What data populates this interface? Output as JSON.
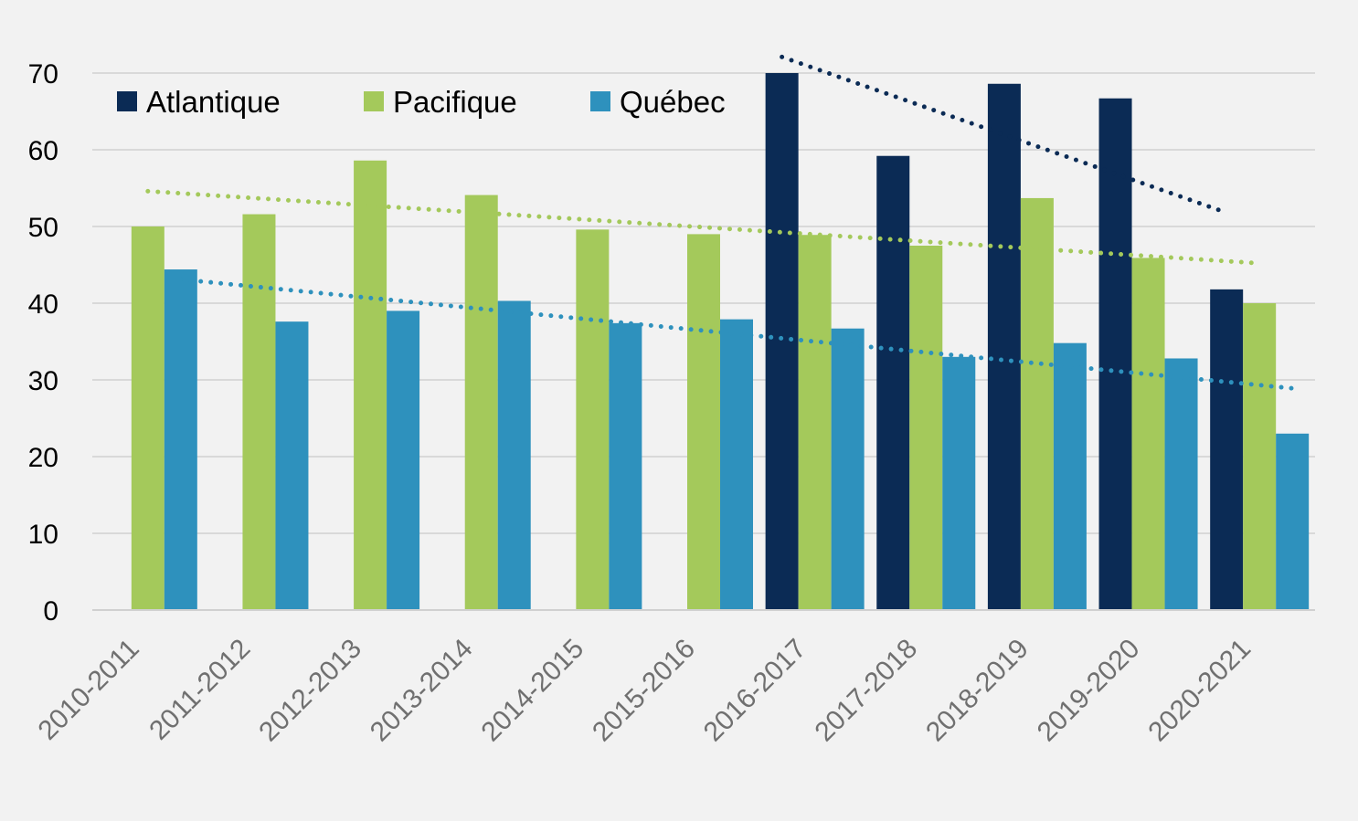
{
  "chart_data": {
    "type": "bar",
    "categories": [
      "2010-2011",
      "2011-2012",
      "2012-2013",
      "2013-2014",
      "2014-2015",
      "2015-2016",
      "2016-2017",
      "2017-2018",
      "2018-2019",
      "2019-2020",
      "2020-2021"
    ],
    "series": [
      {
        "name": "Atlantique",
        "color": "#0b2b55",
        "values": [
          null,
          null,
          null,
          null,
          null,
          null,
          70,
          59.2,
          68.6,
          66.7,
          41.8
        ]
      },
      {
        "name": "Pacifique",
        "color": "#a4c95b",
        "values": [
          50,
          51.6,
          58.6,
          54.1,
          49.6,
          49,
          48.9,
          47.5,
          53.7,
          45.9,
          40
        ]
      },
      {
        "name": "Québec",
        "color": "#2e91bd",
        "values": [
          44.4,
          37.6,
          39,
          40.3,
          37.4,
          37.9,
          36.7,
          33,
          34.8,
          32.8,
          23
        ]
      }
    ],
    "trendlines": [
      {
        "series": "Atlantique",
        "style": "dotted",
        "start": {
          "x": "2016-2017",
          "y": 72.1
        },
        "end": {
          "x": "2020-2021",
          "y": 51.8
        }
      },
      {
        "series": "Pacifique",
        "style": "dotted",
        "start": {
          "x": "2010-2011",
          "y": 54.6
        },
        "end": {
          "x": "2020-2021",
          "y": 45.2
        }
      },
      {
        "series": "Québec",
        "style": "dotted",
        "start": {
          "x": "2010-2011",
          "y": 43.1
        },
        "end": {
          "x": "2020-2021",
          "y": 28.9
        }
      }
    ],
    "yticks": [
      "0",
      "10",
      "20",
      "30",
      "40",
      "50",
      "60",
      "70"
    ],
    "ylim": [
      0,
      70
    ],
    "grid": true,
    "legend_position": "top-left",
    "title": "",
    "xlabel": "",
    "ylabel": ""
  }
}
